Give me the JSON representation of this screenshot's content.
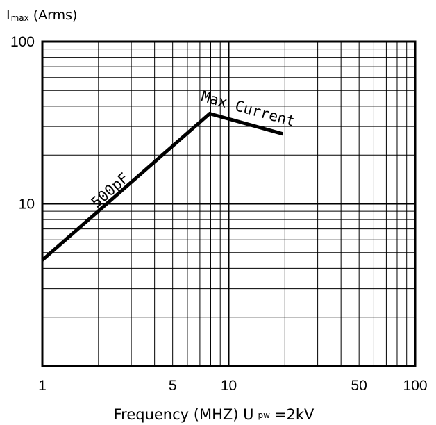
{
  "chart_data": {
    "type": "line",
    "x_scale": "log",
    "y_scale": "log",
    "xlim": [
      1,
      100
    ],
    "ylim": [
      1,
      100
    ],
    "x_ticks": [
      {
        "value": 1,
        "label": "1"
      },
      {
        "value": 5,
        "label": "5"
      },
      {
        "value": 10,
        "label": "10"
      },
      {
        "value": 50,
        "label": "50"
      },
      {
        "value": 100,
        "label": "100"
      }
    ],
    "y_ticks": [
      {
        "value": 10,
        "label": "10"
      },
      {
        "value": 100,
        "label": "100"
      }
    ],
    "ylabel": {
      "main": "I",
      "sub": "max",
      "unit": "(Arms)"
    },
    "xlabel": {
      "main": "Frequency (MHZ) U",
      "sub": "pw",
      "tail": "=2kV"
    },
    "grid": true,
    "series": [
      {
        "x": [
          1,
          7.9,
          19.5
        ],
        "y": [
          4.5,
          36,
          27
        ],
        "color": "#000000"
      }
    ],
    "annotations": [
      {
        "text": "500pF",
        "x": 2.4,
        "y": 11.5
      },
      {
        "text": "Max Current",
        "x": 12.5,
        "y": 36
      }
    ]
  }
}
